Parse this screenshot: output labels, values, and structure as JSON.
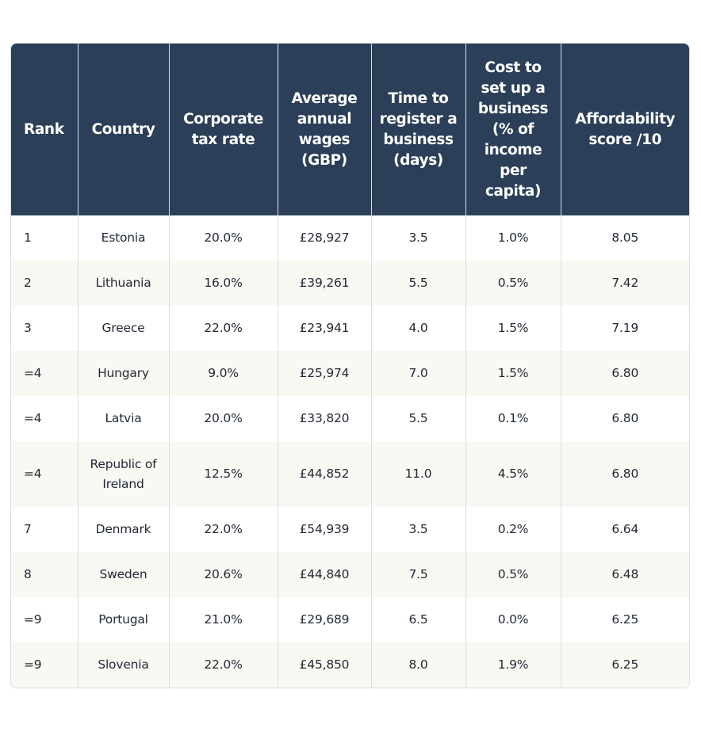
{
  "table": {
    "headers": [
      "Rank",
      "Country",
      "Corporate tax rate",
      "Average annual wages (GBP)",
      "Time to register a business (days)",
      "Cost to set up a business (% of income per capita)",
      "Affordability score /10"
    ],
    "rows": [
      [
        "1",
        "Estonia",
        "20.0%",
        "£28,927",
        "3.5",
        "1.0%",
        "8.05"
      ],
      [
        "2",
        "Lithuania",
        "16.0%",
        "£39,261",
        "5.5",
        "0.5%",
        "7.42"
      ],
      [
        "3",
        "Greece",
        "22.0%",
        "£23,941",
        "4.0",
        "1.5%",
        "7.19"
      ],
      [
        "=4",
        "Hungary",
        "9.0%",
        "£25,974",
        "7.0",
        "1.5%",
        "6.80"
      ],
      [
        "=4",
        "Latvia",
        "20.0%",
        "£33,820",
        "5.5",
        "0.1%",
        "6.80"
      ],
      [
        "=4",
        "Republic of Ireland",
        "12.5%",
        "£44,852",
        "11.0",
        "4.5%",
        "6.80"
      ],
      [
        "7",
        "Denmark",
        "22.0%",
        "£54,939",
        "3.5",
        "0.2%",
        "6.64"
      ],
      [
        "8",
        "Sweden",
        "20.6%",
        "£44,840",
        "7.5",
        "0.5%",
        "6.48"
      ],
      [
        "=9",
        "Portugal",
        "21.0%",
        "£29,689",
        "6.5",
        "0.0%",
        "6.25"
      ],
      [
        "=9",
        "Slovenia",
        "22.0%",
        "£45,850",
        "8.0",
        "1.9%",
        "6.25"
      ]
    ]
  },
  "colors": {
    "header_bg": "#2c3f59",
    "header_text": "#ffffff",
    "row_alt_bg": "#faf8f3",
    "body_text": "#222a36"
  }
}
